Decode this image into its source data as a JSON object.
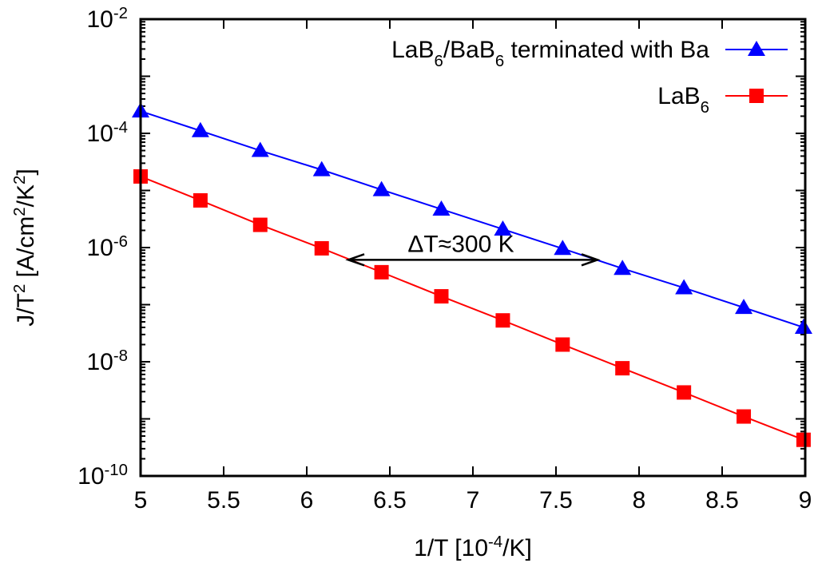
{
  "chart_data": {
    "type": "line",
    "title": "",
    "xlabel": "1/T [10^-4/K]",
    "ylabel": "J/T^2 [A/cm^2/K^2]",
    "xlim": [
      5,
      9
    ],
    "ylim": [
      1e-10,
      0.01
    ],
    "yscale": "log",
    "grid": false,
    "legend": "top-right",
    "x_ticks": [
      "5",
      "5.5",
      "6",
      "6.5",
      "7",
      "7.5",
      "8",
      "8.5",
      "9"
    ],
    "y_ticks": [
      "10^-2",
      "10^-4",
      "10^-6",
      "10^-8",
      "10^-10"
    ],
    "series": [
      {
        "name": "LaB6/BaB6 terminated with Ba",
        "color": "#0000ff",
        "marker": "triangle",
        "x": [
          5.0,
          5.36,
          5.72,
          6.09,
          6.45,
          6.81,
          7.18,
          7.54,
          7.9,
          8.27,
          8.63,
          8.99
        ],
        "y": [
          0.000245,
          0.000111,
          5e-05,
          2.3e-05,
          1.03e-05,
          4.7e-06,
          2.1e-06,
          9.6e-07,
          4.3e-07,
          1.97e-07,
          8.9e-08,
          4e-08
        ]
      },
      {
        "name": "LaB6",
        "color": "#ff0000",
        "marker": "square",
        "x": [
          5.0,
          5.36,
          5.72,
          6.09,
          6.45,
          6.81,
          7.18,
          7.54,
          7.9,
          8.27,
          8.63,
          8.99
        ],
        "y": [
          1.76e-05,
          6.7e-06,
          2.5e-06,
          9.7e-07,
          3.7e-07,
          1.4e-07,
          5.3e-08,
          2e-08,
          7.7e-09,
          2.9e-09,
          1.1e-09,
          4.3e-10
        ]
      }
    ],
    "annotations": [
      {
        "text": "ΔT≈300 K",
        "type": "double-arrow",
        "x_from": 6.25,
        "x_to": 7.75,
        "y": 6.1e-07
      }
    ]
  }
}
